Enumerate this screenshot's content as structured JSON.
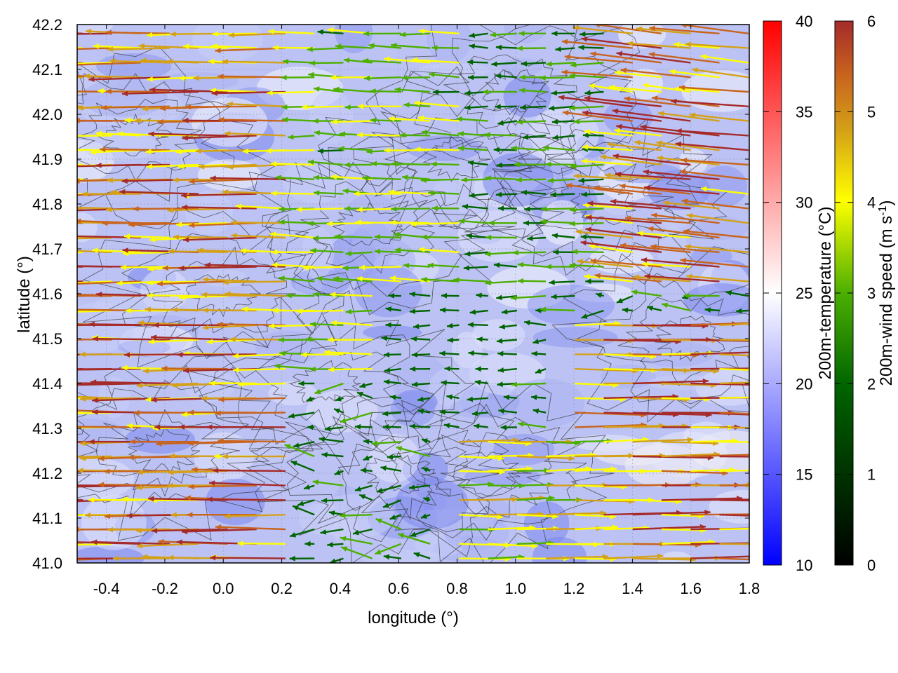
{
  "chart_data": {
    "type": "vector-field-heatmap",
    "xlabel": "longitude (°)",
    "ylabel": "latitude (°)",
    "xlim": [
      -0.5,
      1.8
    ],
    "ylim": [
      41.0,
      42.2
    ],
    "x_ticks": [
      "-0.4",
      "-0.2",
      "0.0",
      "0.2",
      "0.4",
      "0.6",
      "0.8",
      "1.0",
      "1.2",
      "1.4",
      "1.6",
      "1.8"
    ],
    "y_ticks": [
      "41.0",
      "41.1",
      "41.2",
      "41.3",
      "41.4",
      "41.5",
      "41.6",
      "41.7",
      "41.8",
      "41.9",
      "42.0",
      "42.1",
      "42.2"
    ],
    "grid": true,
    "temperature_colorbar": {
      "label": "200m-temperature (°C)",
      "range": [
        10,
        40
      ],
      "ticks": [
        "10",
        "15",
        "20",
        "25",
        "30",
        "35",
        "40"
      ],
      "colors": [
        "#0000ff",
        "#ffffff",
        "#ff0000"
      ]
    },
    "wind_colorbar": {
      "label": "200m-wind speed (m s",
      "label_sup": "-1",
      "label_end": ")",
      "range": [
        0,
        6
      ],
      "ticks": [
        "0",
        "1",
        "2",
        "3",
        "4",
        "5",
        "6"
      ],
      "colors": [
        "#000000",
        "#006400",
        "#4caf00",
        "#ffff00",
        "#d4a017",
        "#c8641e",
        "#a52a2a"
      ]
    },
    "temperature_field_mean": 20,
    "wind_regions": [
      {
        "lon": [
          -0.5,
          0.3
        ],
        "lat": [
          41.0,
          42.2
        ],
        "u": -5.8,
        "v": 0.0,
        "speed": 5.8
      },
      {
        "lon": [
          0.3,
          0.9
        ],
        "lat": [
          41.4,
          42.2
        ],
        "u": -3.5,
        "v": 0.1,
        "speed": 3.5
      },
      {
        "lon": [
          0.6,
          1.1
        ],
        "lat": [
          41.3,
          41.6
        ],
        "u": -1.5,
        "v": 0.0,
        "speed": 1.5
      },
      {
        "lon": [
          0.9,
          1.35
        ],
        "lat": [
          41.6,
          42.2
        ],
        "u": -2.5,
        "v": 0.0,
        "speed": 2.5
      },
      {
        "lon": [
          1.4,
          1.8
        ],
        "lat": [
          41.6,
          42.2
        ],
        "u": -5.8,
        "v": 0.6,
        "speed": 5.8
      },
      {
        "lon": [
          1.2,
          1.8
        ],
        "lat": [
          41.0,
          41.55
        ],
        "u": 5.8,
        "v": 0.0,
        "speed": 5.8
      },
      {
        "lon": [
          0.8,
          1.3
        ],
        "lat": [
          41.0,
          41.3
        ],
        "u": 4.5,
        "v": 0.0,
        "speed": 4.5
      }
    ]
  }
}
